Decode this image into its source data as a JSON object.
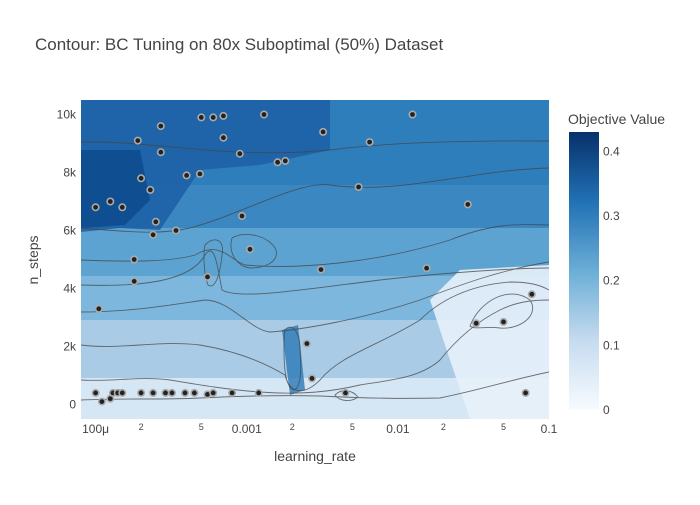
{
  "chart_data": {
    "type": "contour",
    "title": "Contour: BC Tuning on 80x Suboptimal (50%) Dataset",
    "xlabel": "learning_rate",
    "ylabel": "n_steps",
    "x_scale": "log",
    "xlim": [
      8e-05,
      0.1
    ],
    "ylim": [
      -500,
      10500
    ],
    "x_ticks": [
      {
        "value": 0.0001,
        "label": "100μ",
        "major": true
      },
      {
        "value": 0.0002,
        "label": "2",
        "major": false
      },
      {
        "value": 0.0005,
        "label": "5",
        "major": false
      },
      {
        "value": 0.001,
        "label": "0.001",
        "major": true
      },
      {
        "value": 0.002,
        "label": "2",
        "major": false
      },
      {
        "value": 0.005,
        "label": "5",
        "major": false
      },
      {
        "value": 0.01,
        "label": "0.01",
        "major": true
      },
      {
        "value": 0.02,
        "label": "2",
        "major": false
      },
      {
        "value": 0.05,
        "label": "5",
        "major": false
      },
      {
        "value": 0.1,
        "label": "0.1",
        "major": true
      }
    ],
    "y_ticks": [
      {
        "value": 0,
        "label": "0"
      },
      {
        "value": 2000,
        "label": "2k"
      },
      {
        "value": 4000,
        "label": "4k"
      },
      {
        "value": 6000,
        "label": "6k"
      },
      {
        "value": 8000,
        "label": "8k"
      },
      {
        "value": 10000,
        "label": "10k"
      }
    ],
    "colorbar": {
      "title": "Objective Value",
      "range": [
        0,
        0.43
      ],
      "ticks": [
        {
          "value": 0,
          "label": "0"
        },
        {
          "value": 0.1,
          "label": "0.1"
        },
        {
          "value": 0.2,
          "label": "0.2"
        },
        {
          "value": 0.3,
          "label": "0.3"
        },
        {
          "value": 0.4,
          "label": "0.4"
        }
      ],
      "colors": [
        "#f7fbff",
        "#c6dbef",
        "#6baed6",
        "#2171b5",
        "#08306b"
      ]
    },
    "trials": [
      {
        "x": 0.0001,
        "y": 400
      },
      {
        "x": 0.00011,
        "y": 100
      },
      {
        "x": 0.000125,
        "y": 200
      },
      {
        "x": 0.00013,
        "y": 400
      },
      {
        "x": 0.00014,
        "y": 400
      },
      {
        "x": 0.00015,
        "y": 400
      },
      {
        "x": 0.0002,
        "y": 400
      },
      {
        "x": 0.00024,
        "y": 400
      },
      {
        "x": 0.00029,
        "y": 400
      },
      {
        "x": 0.00032,
        "y": 400
      },
      {
        "x": 0.00039,
        "y": 400
      },
      {
        "x": 0.00045,
        "y": 400
      },
      {
        "x": 0.00055,
        "y": 350
      },
      {
        "x": 0.0006,
        "y": 400
      },
      {
        "x": 0.0008,
        "y": 400
      },
      {
        "x": 0.0012,
        "y": 400
      },
      {
        "x": 0.0045,
        "y": 400
      },
      {
        "x": 0.07,
        "y": 400
      },
      {
        "x": 0.000105,
        "y": 3300
      },
      {
        "x": 0.00018,
        "y": 4250
      },
      {
        "x": 0.00018,
        "y": 5000
      },
      {
        "x": 0.00024,
        "y": 5850
      },
      {
        "x": 0.00025,
        "y": 6300
      },
      {
        "x": 0.00034,
        "y": 6000
      },
      {
        "x": 0.00055,
        "y": 4400
      },
      {
        "x": 0.00093,
        "y": 6500
      },
      {
        "x": 0.00105,
        "y": 5350
      },
      {
        "x": 0.0031,
        "y": 4650
      },
      {
        "x": 0.0155,
        "y": 4700
      },
      {
        "x": 0.029,
        "y": 6900
      },
      {
        "x": 0.00023,
        "y": 7400
      },
      {
        "x": 0.0002,
        "y": 7800
      },
      {
        "x": 0.00015,
        "y": 6800
      },
      {
        "x": 0.000125,
        "y": 7000
      },
      {
        "x": 0.0001,
        "y": 6800
      },
      {
        "x": 0.0004,
        "y": 7900
      },
      {
        "x": 0.00049,
        "y": 7950
      },
      {
        "x": 0.0006,
        "y": 9900
      },
      {
        "x": 0.0007,
        "y": 9200
      },
      {
        "x": 0.0007,
        "y": 9950
      },
      {
        "x": 0.0005,
        "y": 9900
      },
      {
        "x": 0.00027,
        "y": 9600
      },
      {
        "x": 0.00019,
        "y": 9100
      },
      {
        "x": 0.00027,
        "y": 8700
      },
      {
        "x": 0.0009,
        "y": 8650
      },
      {
        "x": 0.0013,
        "y": 10000
      },
      {
        "x": 0.0016,
        "y": 8350
      },
      {
        "x": 0.0018,
        "y": 8400
      },
      {
        "x": 0.0032,
        "y": 9400
      },
      {
        "x": 0.0065,
        "y": 9050
      },
      {
        "x": 0.0055,
        "y": 7500
      },
      {
        "x": 0.0125,
        "y": 10000
      },
      {
        "x": 0.0025,
        "y": 2100
      },
      {
        "x": 0.0027,
        "y": 900
      },
      {
        "x": 0.033,
        "y": 2800
      },
      {
        "x": 0.05,
        "y": 2850
      },
      {
        "x": 0.077,
        "y": 3800
      }
    ]
  }
}
